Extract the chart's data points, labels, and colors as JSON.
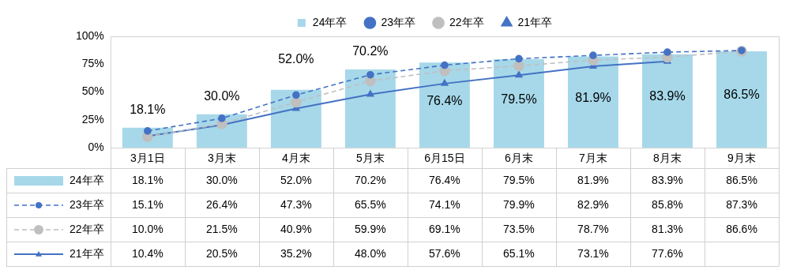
{
  "chart_data": {
    "type": "bar",
    "categories": [
      "3月1日",
      "3月末",
      "4月末",
      "5月末",
      "6月15日",
      "6月末",
      "7月末",
      "8月末",
      "9月末"
    ],
    "ylim": [
      0,
      100
    ],
    "yticks": [
      {
        "value": 0,
        "label": "0%"
      },
      {
        "value": 25,
        "label": "25%"
      },
      {
        "value": 50,
        "label": "50%"
      },
      {
        "value": 75,
        "label": "75%"
      },
      {
        "value": 100,
        "label": "100%"
      }
    ],
    "legend": "top",
    "data_labels": true,
    "series": [
      {
        "name": "24年卒",
        "color": "#a6d8e9",
        "values": [
          18.1,
          30.0,
          52.0,
          70.2,
          76.4,
          79.5,
          81.9,
          83.9,
          86.5
        ],
        "value_labels": [
          "18.1%",
          "30.0%",
          "52.0%",
          "70.2%",
          "76.4%",
          "79.5%",
          "81.9%",
          "83.9%",
          "86.5%"
        ]
      },
      {
        "name": "23年卒",
        "type": "line",
        "color": "#4472c4",
        "marker": "circle",
        "line_style": "dashed",
        "values": [
          15.1,
          26.4,
          47.3,
          65.5,
          74.1,
          79.9,
          82.9,
          85.8,
          87.3
        ],
        "value_labels": [
          "15.1%",
          "26.4%",
          "47.3%",
          "65.5%",
          "74.1%",
          "79.9%",
          "82.9%",
          "85.8%",
          "87.3%"
        ]
      },
      {
        "name": "22年卒",
        "type": "line",
        "color": "#bfbfbf",
        "marker": "circle",
        "line_style": "dashed",
        "values": [
          10.0,
          21.5,
          40.9,
          59.9,
          69.1,
          73.5,
          78.7,
          81.3,
          86.6
        ],
        "value_labels": [
          "10.0%",
          "21.5%",
          "40.9%",
          "59.9%",
          "69.1%",
          "73.5%",
          "78.7%",
          "81.3%",
          "86.6%"
        ]
      },
      {
        "name": "21年卒",
        "type": "line",
        "color": "#4472c4",
        "marker": "triangle",
        "line_style": "solid",
        "values": [
          10.4,
          20.5,
          35.2,
          48.0,
          57.6,
          65.1,
          73.1,
          77.6,
          null
        ],
        "value_labels": [
          "10.4%",
          "20.5%",
          "35.2%",
          "48.0%",
          "57.6%",
          "65.1%",
          "73.1%",
          "77.6%",
          null
        ]
      }
    ]
  }
}
